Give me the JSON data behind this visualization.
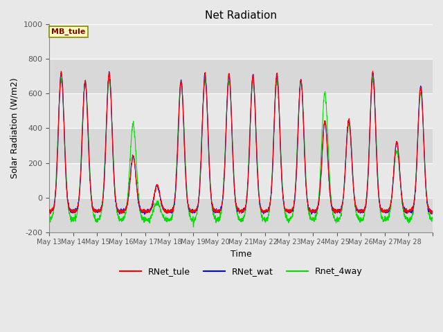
{
  "title": "Net Radiation",
  "xlabel": "Time",
  "ylabel": "Solar Radiation (W/m2)",
  "ylim": [
    -200,
    1000
  ],
  "annotation": "MB_tule",
  "bg_color": "#e8e8e8",
  "legend_entries": [
    "RNet_tule",
    "RNet_wat",
    "Rnet_4way"
  ],
  "legend_colors": [
    "red",
    "blue",
    "#00dd00"
  ],
  "num_days": 16,
  "start_day": 13,
  "points_per_day": 144,
  "peaks_tule": [
    800,
    750,
    800,
    320,
    150,
    750,
    790,
    790,
    780,
    790,
    760,
    520,
    530,
    800,
    400,
    720
  ],
  "peaks_wat": [
    800,
    750,
    800,
    320,
    150,
    750,
    790,
    790,
    780,
    790,
    760,
    520,
    530,
    800,
    400,
    720
  ],
  "peaks_4way": [
    810,
    800,
    810,
    550,
    100,
    800,
    800,
    800,
    800,
    800,
    800,
    730,
    550,
    810,
    400,
    730
  ],
  "night_tule": -80,
  "night_wat": -80,
  "night_4way": -130,
  "sigma": 0.12,
  "x_tick_labels": [
    "May 13",
    "May 14",
    "May 15",
    "May 16",
    "May 17",
    "May 18",
    "May 19",
    "May 20",
    "May 21",
    "May 22",
    "May 23",
    "May 24",
    "May 25",
    "May 26",
    "May 27",
    "May 28"
  ]
}
